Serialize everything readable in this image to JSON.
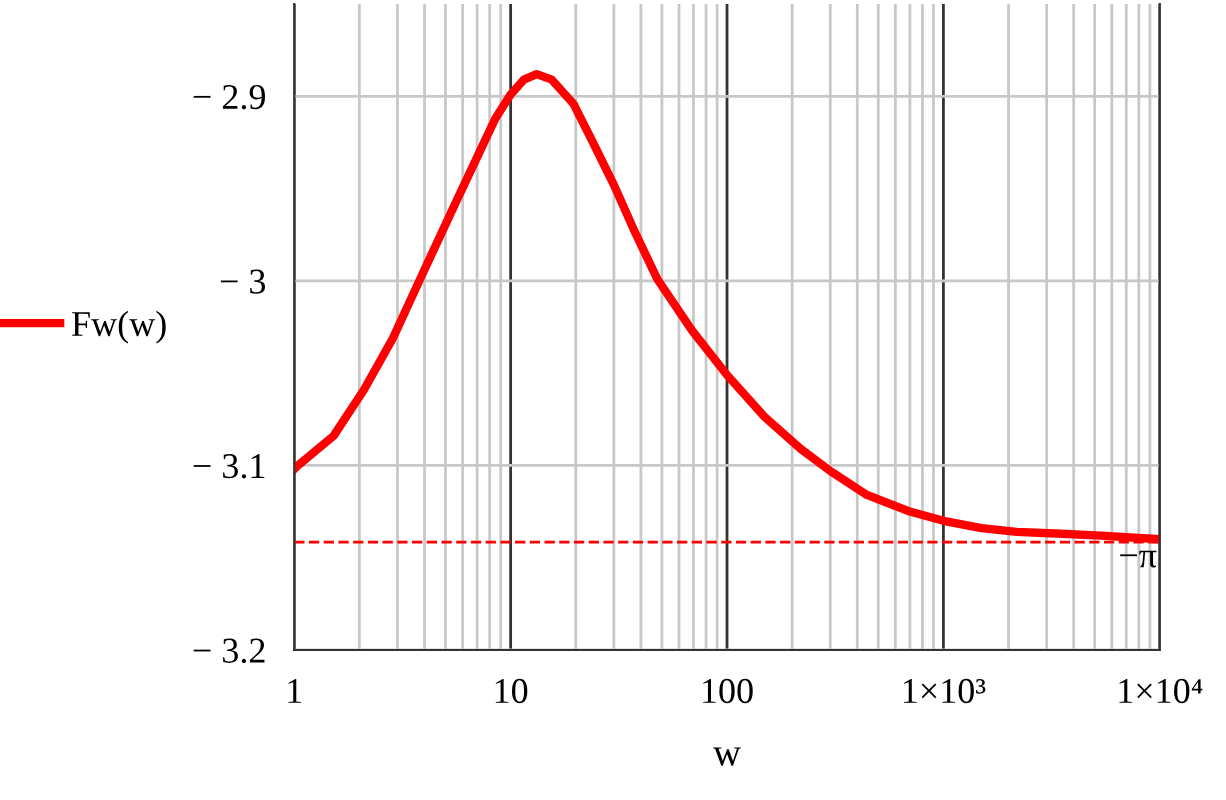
{
  "chart_data": {
    "type": "line",
    "xlabel": "w",
    "log": "x",
    "grid": true,
    "legend": "left",
    "marker": "none",
    "line_style": "solid",
    "xlim": [
      1,
      10000
    ],
    "ylim": [
      -3.2,
      -2.85
    ],
    "xticks": [
      1,
      10,
      100,
      {
        "value": 1000,
        "label": "1×10³"
      },
      {
        "value": 10000,
        "label": "1×10⁴"
      }
    ],
    "yticks": [
      {
        "value": -3.2,
        "label": "− 3.2"
      },
      {
        "value": -3.1,
        "label": "− 3.1"
      },
      {
        "value": -3.0,
        "label": "− 3"
      },
      {
        "value": -2.9,
        "label": "− 2.9"
      }
    ],
    "ref_lines": [
      {
        "axis": "y",
        "value": -3.1416,
        "label": "−π",
        "color": "#ff0000",
        "line_style": "dashed"
      }
    ],
    "series": [
      {
        "name": "Fw(w)",
        "color": "#ff0000",
        "x": [
          1,
          1.04,
          1.52,
          2.1,
          2.86,
          3.96,
          5.5,
          7.4,
          8.5,
          10,
          11.5,
          13.2,
          15.5,
          19.5,
          24,
          30,
          37,
          47.6,
          69,
          100,
          150,
          219,
          300,
          443,
          700,
          1000,
          1500,
          2180,
          3500,
          5340,
          10000
        ],
        "values": [
          -3.102,
          -3.1,
          -3.084,
          -3.059,
          -3.031,
          -2.995,
          -2.959,
          -2.927,
          -2.912,
          -2.899,
          -2.891,
          -2.888,
          -2.891,
          -2.904,
          -2.925,
          -2.948,
          -2.972,
          -2.999,
          -3.027,
          -3.051,
          -3.074,
          -3.091,
          -3.103,
          -3.116,
          -3.125,
          -3.13,
          -3.134,
          -3.136,
          -3.137,
          -3.138,
          -3.14
        ]
      }
    ]
  }
}
